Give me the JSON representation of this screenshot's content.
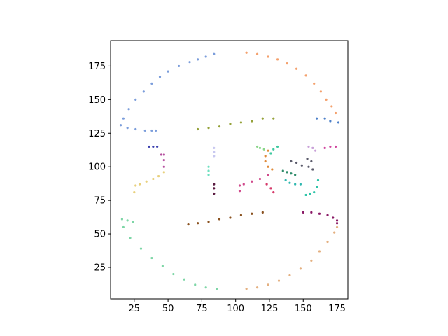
{
  "chart_data": {
    "type": "scatter",
    "title": "",
    "xlabel": "",
    "ylabel": "",
    "xlim": [
      7.5,
      183
    ],
    "ylim": [
      1.5,
      194
    ],
    "x_ticks": [
      25,
      50,
      75,
      100,
      125,
      150,
      175
    ],
    "y_ticks": [
      25,
      50,
      75,
      100,
      125,
      150,
      175
    ],
    "x_tick_labels": [
      "25",
      "50",
      "75",
      "100",
      "125",
      "150",
      "175"
    ],
    "y_tick_labels": [
      "25",
      "50",
      "75",
      "100",
      "125",
      "150",
      "175"
    ],
    "grid": false,
    "legend": "none",
    "series": [
      {
        "color": "#7b9ddb",
        "points": [
          [
            84,
            184
          ],
          [
            78,
            182
          ],
          [
            72,
            180
          ],
          [
            66,
            178
          ],
          [
            58,
            175
          ],
          [
            50,
            171
          ],
          [
            44,
            167
          ],
          [
            38,
            162
          ],
          [
            32,
            156
          ],
          [
            26,
            150
          ],
          [
            21,
            143
          ],
          [
            17,
            136
          ],
          [
            15,
            131
          ],
          [
            20,
            129
          ],
          [
            26,
            128
          ],
          [
            33,
            127
          ],
          [
            38,
            127
          ],
          [
            41,
            127
          ]
        ]
      },
      {
        "color": "#f4a06c",
        "points": [
          [
            108,
            185
          ],
          [
            116,
            184
          ],
          [
            124,
            182
          ],
          [
            131,
            180
          ],
          [
            138,
            177
          ],
          [
            145,
            173
          ],
          [
            152,
            168
          ],
          [
            158,
            162
          ],
          [
            163,
            156
          ],
          [
            167,
            150
          ],
          [
            171,
            145
          ],
          [
            174,
            140
          ]
        ]
      },
      {
        "color": "#4d80c9",
        "points": [
          [
            160,
            136
          ],
          [
            166,
            136
          ],
          [
            170,
            134
          ],
          [
            176,
            133
          ]
        ]
      },
      {
        "color": "#95a23a",
        "points": [
          [
            72,
            128
          ],
          [
            80,
            129
          ],
          [
            88,
            130
          ],
          [
            96,
            132
          ],
          [
            104,
            133
          ],
          [
            112,
            134
          ],
          [
            120,
            136
          ],
          [
            128,
            136
          ]
        ]
      },
      {
        "color": "#3a3fae",
        "points": [
          [
            36,
            115
          ],
          [
            39,
            115
          ],
          [
            42,
            115
          ]
        ]
      },
      {
        "color": "#b5509f",
        "points": [
          [
            45,
            109
          ],
          [
            47,
            109
          ],
          [
            47,
            105
          ],
          [
            47,
            100
          ]
        ]
      },
      {
        "color": "#e8d07c",
        "points": [
          [
            25,
            81
          ],
          [
            26,
            86
          ],
          [
            29,
            87
          ],
          [
            34,
            89
          ],
          [
            39,
            91
          ],
          [
            43,
            93
          ],
          [
            47,
            96
          ]
        ]
      },
      {
        "color": "#c8c8f0",
        "points": [
          [
            84,
            108
          ],
          [
            84,
            111
          ],
          [
            84,
            114
          ]
        ]
      },
      {
        "color": "#6ee0c0",
        "points": [
          [
            80,
            94
          ],
          [
            80,
            97
          ],
          [
            80,
            100
          ]
        ]
      },
      {
        "color": "#5a1a40",
        "points": [
          [
            84,
            80
          ],
          [
            84,
            84
          ],
          [
            84,
            87
          ]
        ]
      },
      {
        "color": "#d04a8c",
        "points": [
          [
            103,
            82
          ],
          [
            103,
            86
          ],
          [
            106,
            87
          ],
          [
            112,
            89
          ],
          [
            118,
            91
          ],
          [
            124,
            94
          ]
        ]
      },
      {
        "color": "#d63a6a",
        "points": [
          [
            123,
            87
          ],
          [
            126,
            84
          ],
          [
            128,
            81
          ]
        ]
      },
      {
        "color": "#8ad68a",
        "points": [
          [
            116,
            115
          ],
          [
            118,
            114
          ],
          [
            121,
            113
          ]
        ]
      },
      {
        "color": "#e08a3a",
        "points": [
          [
            124,
            112
          ],
          [
            122,
            108
          ],
          [
            122,
            104
          ],
          [
            124,
            100
          ],
          [
            127,
            98
          ]
        ]
      },
      {
        "color": "#3fc9a0",
        "points": [
          [
            126,
            110
          ],
          [
            128,
            113
          ],
          [
            131,
            115
          ]
        ]
      },
      {
        "color": "#2e8c6a",
        "points": [
          [
            135,
            97
          ],
          [
            138,
            96
          ],
          [
            141,
            95
          ],
          [
            144,
            94
          ]
        ]
      },
      {
        "color": "#30b8b0",
        "points": [
          [
            137,
            90
          ],
          [
            140,
            88
          ],
          [
            144,
            87
          ],
          [
            148,
            87
          ]
        ]
      },
      {
        "color": "#5a5a6a",
        "points": [
          [
            141,
            104
          ],
          [
            145,
            103
          ],
          [
            149,
            101
          ],
          [
            154,
            100
          ],
          [
            157,
            98
          ],
          [
            156,
            104
          ],
          [
            153,
            106
          ]
        ]
      },
      {
        "color": "#c9a0d8",
        "points": [
          [
            154,
            115
          ],
          [
            157,
            114
          ],
          [
            159,
            112
          ]
        ]
      },
      {
        "color": "#d0449e",
        "points": [
          [
            166,
            114
          ],
          [
            170,
            115
          ],
          [
            174,
            115
          ]
        ]
      },
      {
        "color": "#2ec4a8",
        "points": [
          [
            152,
            79
          ],
          [
            155,
            80
          ],
          [
            158,
            81
          ],
          [
            160,
            85
          ],
          [
            161,
            90
          ]
        ]
      },
      {
        "color": "#8a1a66",
        "points": [
          [
            150,
            66
          ],
          [
            156,
            66
          ],
          [
            162,
            65
          ],
          [
            168,
            64
          ],
          [
            172,
            62
          ],
          [
            175,
            60
          ],
          [
            175,
            58
          ]
        ]
      },
      {
        "color": "#8a5220",
        "points": [
          [
            65,
            57
          ],
          [
            72,
            58
          ],
          [
            80,
            59
          ],
          [
            88,
            61
          ],
          [
            96,
            62
          ],
          [
            104,
            64
          ],
          [
            112,
            65
          ],
          [
            120,
            66
          ]
        ]
      },
      {
        "color": "#7dd6a6",
        "points": [
          [
            16,
            61
          ],
          [
            20,
            60
          ],
          [
            24,
            59
          ],
          [
            17,
            55
          ],
          [
            22,
            47
          ],
          [
            30,
            39
          ],
          [
            38,
            32
          ],
          [
            46,
            26
          ],
          [
            54,
            20
          ],
          [
            62,
            16
          ],
          [
            70,
            12
          ],
          [
            78,
            10
          ],
          [
            86,
            9
          ]
        ]
      },
      {
        "color": "#e4b080",
        "points": [
          [
            108,
            9
          ],
          [
            116,
            10
          ],
          [
            124,
            12
          ],
          [
            132,
            15
          ],
          [
            140,
            19
          ],
          [
            148,
            24
          ],
          [
            156,
            30
          ],
          [
            162,
            37
          ],
          [
            168,
            44
          ],
          [
            173,
            51
          ],
          [
            175,
            55
          ]
        ]
      }
    ]
  }
}
